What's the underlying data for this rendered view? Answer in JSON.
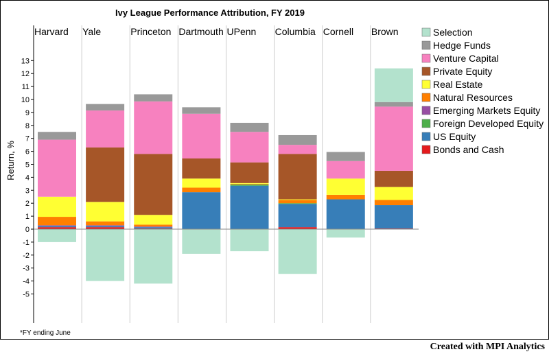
{
  "chart_data": {
    "type": "bar",
    "stacked": true,
    "title": "Ivy League Performance Attribution, FY 2019",
    "ylabel": "Return, %",
    "ylim": [
      -5.5,
      13.5
    ],
    "yticks": [
      -5,
      -4,
      -3,
      -2,
      -1,
      0,
      1,
      2,
      3,
      4,
      5,
      6,
      7,
      8,
      9,
      10,
      11,
      12,
      13
    ],
    "categories": [
      "Harvard",
      "Yale",
      "Princeton",
      "Dartmouth",
      "UPenn",
      "Columbia",
      "Cornell",
      "Brown"
    ],
    "legend_position": "right",
    "series": [
      {
        "name": "Bonds and Cash",
        "color": "#e41a1c",
        "values": [
          0.15,
          0.15,
          0.05,
          0.0,
          0.0,
          0.15,
          0.0,
          0.05
        ]
      },
      {
        "name": "US Equity",
        "color": "#377eb8",
        "values": [
          0.1,
          0.1,
          0.1,
          2.85,
          3.35,
          1.8,
          2.3,
          1.8
        ]
      },
      {
        "name": "Foreign Developed Equity",
        "color": "#4daf4a",
        "values": [
          0.0,
          0.0,
          0.0,
          0.0,
          0.1,
          0.05,
          0.0,
          0.0
        ]
      },
      {
        "name": "Emerging Markets Equity",
        "color": "#984ea3",
        "values": [
          0.05,
          0.05,
          0.05,
          0.0,
          0.0,
          0.0,
          0.0,
          0.0
        ]
      },
      {
        "name": "Natural Resources",
        "color": "#ff7f00",
        "values": [
          0.65,
          0.3,
          0.15,
          0.35,
          0.05,
          0.25,
          0.35,
          0.4
        ]
      },
      {
        "name": "Real Estate",
        "color": "#ffff33",
        "values": [
          1.55,
          1.5,
          0.75,
          0.7,
          0.05,
          0.05,
          1.25,
          1.0
        ]
      },
      {
        "name": "Private Equity",
        "color": "#a65628",
        "values": [
          0.0,
          4.2,
          4.7,
          1.55,
          1.6,
          3.5,
          0.0,
          1.25
        ]
      },
      {
        "name": "Venture Capital",
        "color": "#f781bf",
        "values": [
          4.4,
          2.85,
          4.05,
          3.45,
          2.35,
          0.7,
          1.35,
          4.95
        ]
      },
      {
        "name": "Hedge Funds",
        "color": "#999999",
        "values": [
          0.6,
          0.5,
          0.55,
          0.5,
          0.7,
          0.75,
          0.7,
          0.35
        ]
      },
      {
        "name": "Selection",
        "color": "#b3e2cd",
        "values": [
          -1.0,
          -4.0,
          -4.2,
          -1.9,
          -1.7,
          -3.45,
          -0.65,
          2.6
        ]
      }
    ],
    "footnote": "*FY ending June"
  },
  "credit": "Created with MPI Analytics"
}
